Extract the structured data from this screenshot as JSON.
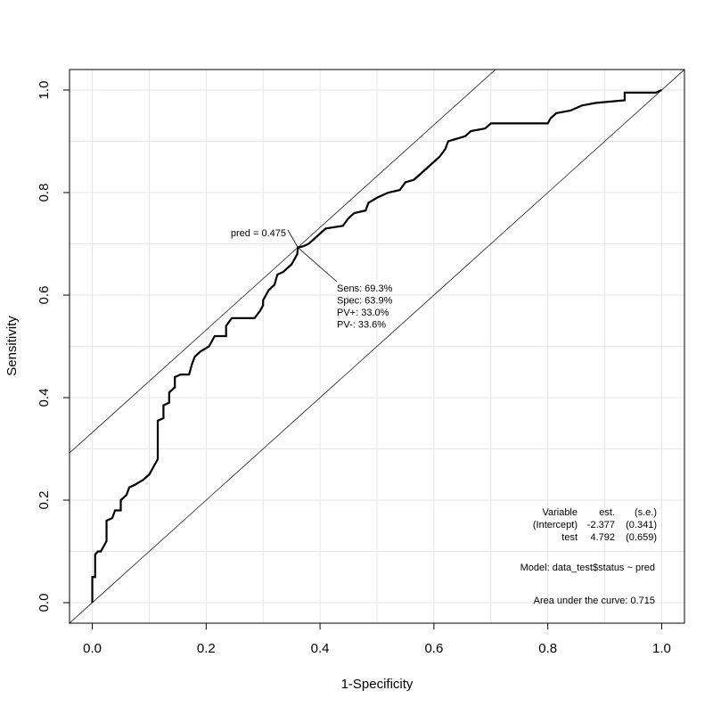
{
  "chart_data": {
    "type": "line",
    "xlabel": "1-Specificity",
    "ylabel": "Sensitivity",
    "xlim": [
      -0.04,
      1.04
    ],
    "ylim": [
      -0.04,
      1.04
    ],
    "xticks": [
      {
        "value": 0,
        "label": "0.0"
      },
      0.2,
      0.4,
      0.6,
      0.8,
      {
        "value": 1,
        "label": "1.0"
      }
    ],
    "yticks": [
      {
        "value": 0,
        "label": "0.0"
      },
      0.2,
      0.4,
      0.6,
      0.8,
      {
        "value": 1,
        "label": "1.0"
      }
    ],
    "xgrid": [
      0,
      0.1,
      0.2,
      0.3,
      0.4,
      0.5,
      0.6,
      0.7,
      0.8,
      0.9,
      1
    ],
    "ygrid": [
      0,
      0.1,
      0.2,
      0.3,
      0.4,
      0.5,
      0.6,
      0.7,
      0.8,
      0.9,
      1
    ],
    "series": [
      {
        "color": "#000000",
        "x": [
          0,
          0,
          0.005,
          0.005,
          0.01,
          0.015,
          0.02,
          0.025,
          0.025,
          0.035,
          0.04,
          0.05,
          0.05,
          0.06,
          0.065,
          0.075,
          0.09,
          0.1,
          0.11,
          0.115,
          0.115,
          0.125,
          0.125,
          0.135,
          0.135,
          0.145,
          0.145,
          0.155,
          0.17,
          0.175,
          0.18,
          0.19,
          0.205,
          0.21,
          0.215,
          0.235,
          0.235,
          0.245,
          0.285,
          0.295,
          0.3,
          0.3,
          0.305,
          0.31,
          0.32,
          0.325,
          0.335,
          0.34,
          0.35,
          0.36,
          0.361,
          0.37,
          0.38,
          0.39,
          0.4,
          0.41,
          0.44,
          0.45,
          0.46,
          0.48,
          0.485,
          0.5,
          0.52,
          0.54,
          0.55,
          0.565,
          0.58,
          0.59,
          0.6,
          0.61,
          0.62,
          0.625,
          0.655,
          0.665,
          0.69,
          0.7,
          0.8,
          0.805,
          0.815,
          0.84,
          0.86,
          0.885,
          0.935,
          0.935,
          0.99,
          1
        ],
        "values": [
          0,
          0.05,
          0.05,
          0.094,
          0.1,
          0.1,
          0.11,
          0.12,
          0.16,
          0.165,
          0.18,
          0.18,
          0.2,
          0.21,
          0.225,
          0.23,
          0.24,
          0.25,
          0.27,
          0.28,
          0.355,
          0.36,
          0.385,
          0.39,
          0.41,
          0.42,
          0.44,
          0.445,
          0.445,
          0.465,
          0.48,
          0.49,
          0.5,
          0.51,
          0.52,
          0.52,
          0.54,
          0.555,
          0.555,
          0.57,
          0.58,
          0.59,
          0.6,
          0.61,
          0.62,
          0.64,
          0.645,
          0.65,
          0.66,
          0.68,
          0.693,
          0.695,
          0.7,
          0.71,
          0.72,
          0.73,
          0.735,
          0.75,
          0.76,
          0.765,
          0.78,
          0.79,
          0.8,
          0.805,
          0.82,
          0.825,
          0.84,
          0.85,
          0.86,
          0.87,
          0.885,
          0.9,
          0.91,
          0.92,
          0.925,
          0.935,
          0.935,
          0.945,
          0.955,
          0.96,
          0.97,
          0.975,
          0.98,
          0.995,
          0.995,
          1
        ]
      }
    ],
    "optimal": {
      "x": 0.361,
      "y": 0.693,
      "label": "pred = 0.475",
      "stats": [
        "Sens: 69.3%",
        "Spec: 63.9%",
        "PV+: 33.0%",
        "PV-: 33.6%"
      ]
    },
    "model_table": {
      "header": [
        "Variable",
        "est.",
        "(s.e.)"
      ],
      "rows": [
        [
          "(Intercept)",
          "-2.377",
          "(0.341)"
        ],
        [
          "test",
          "4.792",
          "(0.659)"
        ]
      ]
    },
    "model": "Model:  data_test$status ~ pred",
    "auc": "Area under the curve: 0.715"
  }
}
